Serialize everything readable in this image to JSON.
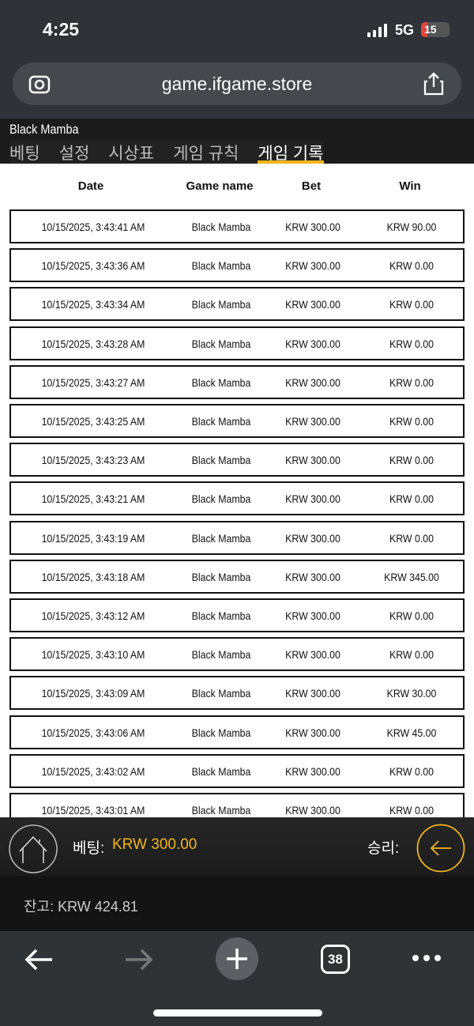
{
  "status_bar": {
    "time": "4:25",
    "network": "5G",
    "battery": "15"
  },
  "browser": {
    "url": "game.ifgame.store",
    "tab_count": "38"
  },
  "game": {
    "title": "Black Mamba",
    "tabs": [
      "베팅",
      "설정",
      "시상표",
      "게임 규칙",
      "게임 기록"
    ],
    "active_tab": "게임 기록"
  },
  "history": {
    "columns": [
      "Date",
      "Game name",
      "Bet",
      "Win"
    ],
    "rows": [
      [
        "10/15/2025, 3:43:41 AM",
        "Black Mamba",
        "KRW 300.00",
        "KRW 90.00"
      ],
      [
        "10/15/2025, 3:43:36 AM",
        "Black Mamba",
        "KRW 300.00",
        "KRW 0.00"
      ],
      [
        "10/15/2025, 3:43:34 AM",
        "Black Mamba",
        "KRW 300.00",
        "KRW 0.00"
      ],
      [
        "10/15/2025, 3:43:28 AM",
        "Black Mamba",
        "KRW 300.00",
        "KRW 0.00"
      ],
      [
        "10/15/2025, 3:43:27 AM",
        "Black Mamba",
        "KRW 300.00",
        "KRW 0.00"
      ],
      [
        "10/15/2025, 3:43:25 AM",
        "Black Mamba",
        "KRW 300.00",
        "KRW 0.00"
      ],
      [
        "10/15/2025, 3:43:23 AM",
        "Black Mamba",
        "KRW 300.00",
        "KRW 0.00"
      ],
      [
        "10/15/2025, 3:43:21 AM",
        "Black Mamba",
        "KRW 300.00",
        "KRW 0.00"
      ],
      [
        "10/15/2025, 3:43:19 AM",
        "Black Mamba",
        "KRW 300.00",
        "KRW 0.00"
      ],
      [
        "10/15/2025, 3:43:18 AM",
        "Black Mamba",
        "KRW 300.00",
        "KRW 345.00"
      ],
      [
        "10/15/2025, 3:43:12 AM",
        "Black Mamba",
        "KRW 300.00",
        "KRW 0.00"
      ],
      [
        "10/15/2025, 3:43:10 AM",
        "Black Mamba",
        "KRW 300.00",
        "KRW 0.00"
      ],
      [
        "10/15/2025, 3:43:09 AM",
        "Black Mamba",
        "KRW 300.00",
        "KRW 30.00"
      ],
      [
        "10/15/2025, 3:43:06 AM",
        "Black Mamba",
        "KRW 300.00",
        "KRW 45.00"
      ],
      [
        "10/15/2025, 3:43:02 AM",
        "Black Mamba",
        "KRW 300.00",
        "KRW 0.00"
      ],
      [
        "10/15/2025, 3:43:01 AM",
        "Black Mamba",
        "KRW 300.00",
        "KRW 0.00"
      ]
    ]
  },
  "bottom": {
    "bet_label": "베팅:",
    "bet_value": "KRW 300.00",
    "win_label": "승리:",
    "balance": "잔고: KRW 424.81"
  },
  "colors": {
    "accent": "#f2b51c"
  }
}
